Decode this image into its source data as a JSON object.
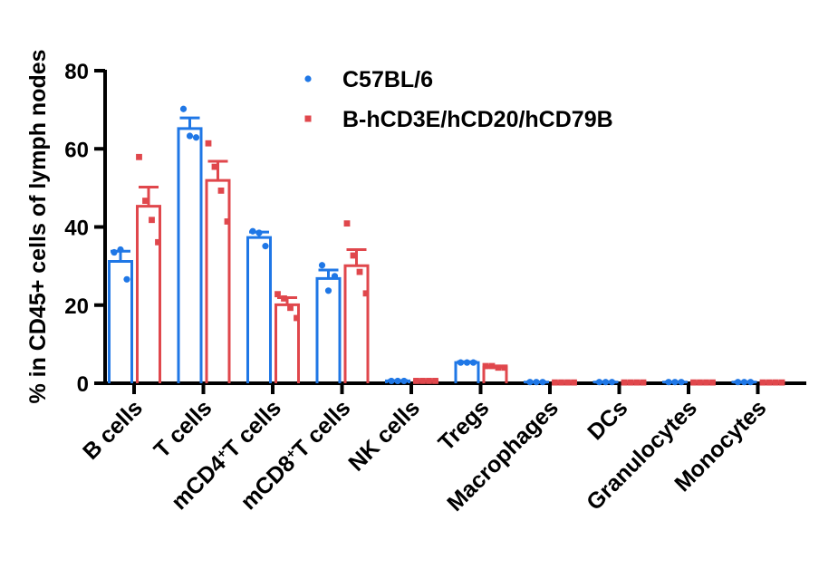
{
  "chart_data": {
    "type": "bar",
    "ylabel": "% in CD45+ cells of lymph nodes",
    "ylim": [
      0,
      80
    ],
    "yticks": [
      "0",
      "20",
      "40",
      "60",
      "80"
    ],
    "categories": [
      {
        "pre": "B cells",
        "sup": "",
        "post": ""
      },
      {
        "pre": "T cells",
        "sup": "",
        "post": ""
      },
      {
        "pre": "mCD4",
        "sup": "+",
        "post": "T cells"
      },
      {
        "pre": "mCD8",
        "sup": "+",
        "post": "T cells"
      },
      {
        "pre": "NK cells",
        "sup": "",
        "post": ""
      },
      {
        "pre": "Tregs",
        "sup": "",
        "post": ""
      },
      {
        "pre": "Macrophages",
        "sup": "",
        "post": ""
      },
      {
        "pre": "DCs",
        "sup": "",
        "post": ""
      },
      {
        "pre": "Granulocytes",
        "sup": "",
        "post": ""
      },
      {
        "pre": "Monocytes",
        "sup": "",
        "post": ""
      }
    ],
    "series": [
      {
        "name": "C57BL/6",
        "color": "#1f77e6",
        "marker": "circle",
        "values": [
          31.2,
          65.2,
          37.3,
          26.8,
          0.6,
          5.3,
          0.3,
          0.3,
          0.3,
          0.3
        ],
        "errors": [
          2.6,
          2.7,
          1.4,
          2.2,
          0.1,
          0.2,
          0.05,
          0.05,
          0.05,
          0.05
        ],
        "points": [
          [
            33.5,
            34.2,
            26.6
          ],
          [
            70.2,
            63.3,
            62.9
          ],
          [
            38.9,
            38.5,
            35.1
          ],
          [
            30.2,
            23.7,
            27.4
          ],
          [
            0.6,
            0.6,
            0.6
          ],
          [
            5.3,
            5.3,
            5.3
          ],
          [
            0.3,
            0.3,
            0.3
          ],
          [
            0.3,
            0.3,
            0.3
          ],
          [
            0.3,
            0.3,
            0.3
          ],
          [
            0.3,
            0.3,
            0.3
          ]
        ]
      },
      {
        "name": "B-hCD3E/hCD20/hCD79B",
        "color": "#e0474c",
        "marker": "square",
        "values": [
          45.3,
          51.9,
          20.1,
          30.1,
          0.6,
          4.1,
          0.2,
          0.2,
          0.2,
          0.2
        ],
        "errors": [
          4.9,
          4.9,
          1.8,
          4.1,
          0.1,
          0.3,
          0.05,
          0.05,
          0.05,
          0.05
        ],
        "points": [
          [
            57.9,
            46.7,
            41.8,
            36.1
          ],
          [
            61.4,
            55.4,
            49.3,
            41.4
          ],
          [
            22.8,
            21.7,
            19.3,
            16.7
          ],
          [
            40.9,
            32.7,
            28.5,
            23.0
          ],
          [
            0.6,
            0.6,
            0.6,
            0.6
          ],
          [
            4.4,
            4.4,
            4.0,
            4.0
          ],
          [
            0.2,
            0.2,
            0.2,
            0.2
          ],
          [
            0.2,
            0.2,
            0.2,
            0.2
          ],
          [
            0.2,
            0.2,
            0.2,
            0.2
          ],
          [
            0.2,
            0.2,
            0.2,
            0.2
          ]
        ]
      }
    ],
    "legend": "top-center",
    "grid": false
  }
}
